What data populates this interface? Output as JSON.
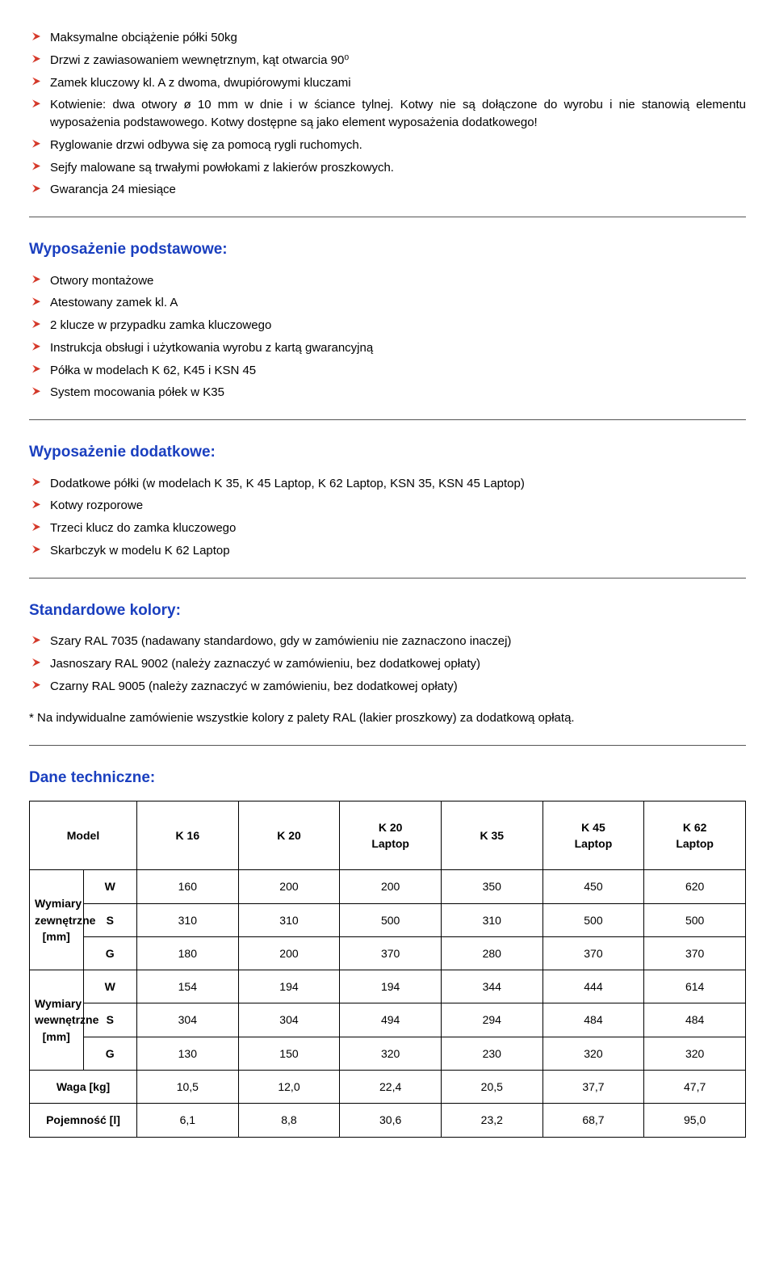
{
  "features": {
    "items": [
      "Maksymalne obciążenie półki 50kg",
      "Drzwi z zawiasowaniem wewnętrznym, kąt otwarcia 90⁰",
      "Zamek kluczowy kl. A z dwoma, dwupiórowymi kluczami",
      "Kotwienie: dwa otwory ø 10 mm w dnie i w ściance tylnej. Kotwy nie są dołączone do wyrobu i nie stanowią elementu wyposażenia podstawowego. Kotwy dostępne są jako element wyposażenia dodatkowego!",
      "Ryglowanie drzwi odbywa się za pomocą rygli ruchomych.",
      "Sejfy malowane są trwałymi powłokami z lakierów proszkowych.",
      "Gwarancja 24 miesiące"
    ]
  },
  "sections": {
    "basic": {
      "title": "Wyposażenie podstawowe:",
      "items": [
        "Otwory montażowe",
        "Atestowany zamek kl. A",
        "2 klucze w przypadku zamka kluczowego",
        "Instrukcja obsługi i użytkowania wyrobu z kartą gwarancyjną",
        "Półka w modelach K 62, K45 i KSN 45",
        "System mocowania półek w K35"
      ]
    },
    "extra": {
      "title": "Wyposażenie dodatkowe:",
      "items": [
        "Dodatkowe półki (w modelach K 35, K 45 Laptop, K 62 Laptop, KSN 35, KSN 45 Laptop)",
        "Kotwy rozporowe",
        "Trzeci klucz do zamka kluczowego",
        "Skarbczyk w modelu K 62 Laptop"
      ]
    },
    "colors": {
      "title": "Standardowe kolory:",
      "items": [
        "Szary RAL 7035 (nadawany standardowo, gdy w zamówieniu nie zaznaczono inaczej)",
        "Jasnoszary RAL 9002 (należy zaznaczyć w zamówieniu, bez dodatkowej opłaty)",
        "Czarny RAL 9005 (należy zaznaczyć w zamówieniu, bez dodatkowej opłaty)"
      ],
      "note": "* Na indywidualne zamówienie wszystkie kolory z palety RAL (lakier proszkowy) za dodatkową opłatą."
    },
    "tech": {
      "title": "Dane techniczne:"
    }
  },
  "table": {
    "header": [
      "Model",
      "K 16",
      "K 20",
      "K 20 Laptop",
      "K 35",
      "K 45 Laptop",
      "K 62 Laptop"
    ],
    "groups": [
      {
        "label": "Wymiary zewnętrzne [mm]",
        "rows": [
          {
            "k": "W",
            "v": [
              "160",
              "200",
              "200",
              "350",
              "450",
              "620"
            ]
          },
          {
            "k": "S",
            "v": [
              "310",
              "310",
              "500",
              "310",
              "500",
              "500"
            ]
          },
          {
            "k": "G",
            "v": [
              "180",
              "200",
              "370",
              "280",
              "370",
              "370"
            ]
          }
        ]
      },
      {
        "label": "Wymiary wewnętrzne [mm]",
        "rows": [
          {
            "k": "W",
            "v": [
              "154",
              "194",
              "194",
              "344",
              "444",
              "614"
            ]
          },
          {
            "k": "S",
            "v": [
              "304",
              "304",
              "494",
              "294",
              "484",
              "484"
            ]
          },
          {
            "k": "G",
            "v": [
              "130",
              "150",
              "320",
              "230",
              "320",
              "320"
            ]
          }
        ]
      }
    ],
    "singles": [
      {
        "label": "Waga [kg]",
        "v": [
          "10,5",
          "12,0",
          "22,4",
          "20,5",
          "37,7",
          "47,7"
        ]
      },
      {
        "label": "Pojemność [l]",
        "v": [
          "6,1",
          "8,8",
          "30,6",
          "23,2",
          "68,7",
          "95,0"
        ]
      }
    ]
  }
}
